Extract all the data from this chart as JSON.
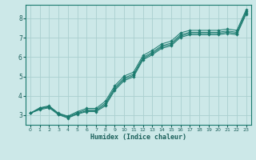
{
  "xlabel": "Humidex (Indice chaleur)",
  "bg_color": "#cce8e8",
  "grid_color": "#aacfcf",
  "line_color": "#1a7a6e",
  "xlim": [
    -0.5,
    23.5
  ],
  "ylim": [
    2.5,
    8.7
  ],
  "xticks": [
    0,
    1,
    2,
    3,
    4,
    5,
    6,
    7,
    8,
    9,
    10,
    11,
    12,
    13,
    14,
    15,
    16,
    17,
    18,
    19,
    20,
    21,
    22,
    23
  ],
  "yticks": [
    3,
    4,
    5,
    6,
    7,
    8
  ],
  "lines": [
    {
      "x": [
        0,
        1,
        2,
        3,
        4,
        5,
        6,
        7,
        8,
        9,
        10,
        11,
        12,
        13,
        14,
        15,
        16,
        17,
        18,
        19,
        20,
        21,
        22,
        23
      ],
      "y": [
        3.1,
        3.32,
        3.42,
        3.05,
        2.88,
        3.08,
        3.22,
        3.22,
        3.55,
        4.35,
        4.85,
        5.05,
        5.92,
        6.18,
        6.52,
        6.65,
        7.08,
        7.22,
        7.22,
        7.22,
        7.22,
        7.28,
        7.22,
        8.3
      ]
    },
    {
      "x": [
        0,
        1,
        2,
        3,
        4,
        5,
        6,
        7,
        8,
        9,
        10,
        11,
        12,
        13,
        14,
        15,
        16,
        17,
        18,
        19,
        20,
        21,
        22,
        23
      ],
      "y": [
        3.1,
        3.35,
        3.45,
        3.08,
        2.92,
        3.12,
        3.28,
        3.28,
        3.62,
        4.42,
        4.92,
        5.12,
        5.98,
        6.25,
        6.58,
        6.72,
        7.15,
        7.28,
        7.28,
        7.28,
        7.28,
        7.35,
        7.28,
        8.38
      ]
    },
    {
      "x": [
        0,
        1,
        2,
        3,
        4,
        5,
        6,
        7,
        8,
        9,
        10,
        11,
        12,
        13,
        14,
        15,
        16,
        17,
        18,
        19,
        20,
        21,
        22,
        23
      ],
      "y": [
        3.1,
        3.28,
        3.38,
        3.02,
        2.85,
        3.05,
        3.18,
        3.18,
        3.48,
        4.28,
        4.78,
        4.98,
        5.85,
        6.12,
        6.45,
        6.58,
        7.02,
        7.15,
        7.15,
        7.15,
        7.15,
        7.22,
        7.15,
        8.22
      ]
    },
    {
      "x": [
        0,
        1,
        2,
        3,
        4,
        5,
        6,
        7,
        8,
        9,
        10,
        11,
        12,
        13,
        14,
        15,
        16,
        17,
        18,
        19,
        20,
        21,
        22,
        23
      ],
      "y": [
        3.1,
        3.38,
        3.48,
        3.1,
        2.95,
        3.18,
        3.35,
        3.35,
        3.72,
        4.52,
        5.02,
        5.22,
        6.08,
        6.35,
        6.68,
        6.82,
        7.25,
        7.38,
        7.38,
        7.38,
        7.38,
        7.45,
        7.38,
        8.45
      ]
    }
  ]
}
